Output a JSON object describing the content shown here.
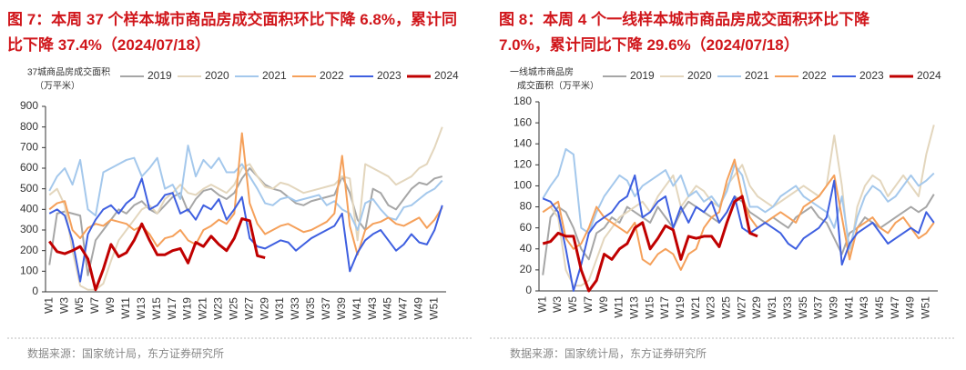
{
  "chart_data": [
    {
      "type": "line",
      "title": "图 7：本周 37 个样本城市商品房成交面积环比下降 6.8%，累计同比下降 37.4%（2024/07/18）",
      "y_label": [
        "37城商品房成交面积",
        "（万平米）"
      ],
      "source": "数据来源：国家统计局，东方证券研究所",
      "categories": [
        "W1",
        null,
        "W3",
        null,
        "W5",
        null,
        "W7",
        null,
        "W9",
        null,
        "W11",
        null,
        "W13",
        null,
        "W15",
        null,
        "W17",
        null,
        "W19",
        null,
        "W21",
        null,
        "W23",
        null,
        "W25",
        null,
        "W27",
        null,
        "W29",
        null,
        "W31",
        null,
        "W33",
        null,
        "W35",
        null,
        "W37",
        null,
        "W39",
        null,
        "W41",
        null,
        "W43",
        null,
        "W45",
        null,
        "W47",
        null,
        "W49",
        null,
        "W51",
        null
      ],
      "ylim": [
        0,
        900
      ],
      "yticks": [
        0,
        100,
        200,
        300,
        400,
        500,
        600,
        700,
        800,
        900
      ],
      "series": [
        {
          "name": "2019",
          "color": "#a6a6a6",
          "width": 2,
          "values": [
            130,
            380,
            390,
            380,
            370,
            80,
            250,
            300,
            350,
            400,
            380,
            420,
            440,
            400,
            380,
            420,
            460,
            480,
            390,
            450,
            490,
            500,
            470,
            450,
            480,
            550,
            600,
            560,
            520,
            500,
            490,
            460,
            430,
            420,
            440,
            450,
            460,
            470,
            560,
            480,
            350,
            300,
            500,
            480,
            420,
            400,
            450,
            500,
            530,
            520,
            550,
            560
          ]
        },
        {
          "name": "2020",
          "color": "#e3d6bd",
          "width": 2,
          "values": [
            470,
            500,
            420,
            200,
            30,
            10,
            10,
            40,
            150,
            250,
            300,
            350,
            400,
            420,
            380,
            450,
            480,
            520,
            480,
            470,
            500,
            520,
            500,
            480,
            520,
            600,
            620,
            560,
            510,
            500,
            530,
            520,
            500,
            480,
            490,
            500,
            510,
            520,
            560,
            550,
            250,
            620,
            600,
            580,
            560,
            520,
            540,
            560,
            600,
            620,
            700,
            800
          ]
        },
        {
          "name": "2021",
          "color": "#a4c8ec",
          "width": 2,
          "values": [
            490,
            560,
            600,
            520,
            640,
            400,
            370,
            580,
            600,
            620,
            640,
            650,
            560,
            600,
            650,
            500,
            520,
            450,
            710,
            560,
            640,
            600,
            650,
            580,
            580,
            620,
            560,
            500,
            430,
            420,
            450,
            460,
            440,
            450,
            460,
            470,
            420,
            440,
            400,
            380,
            300,
            430,
            450,
            400,
            360,
            350,
            410,
            420,
            450,
            480,
            500,
            540
          ]
        },
        {
          "name": "2022",
          "color": "#f5a05a",
          "width": 2,
          "values": [
            400,
            430,
            440,
            300,
            260,
            310,
            330,
            320,
            350,
            340,
            330,
            300,
            320,
            280,
            220,
            260,
            270,
            300,
            250,
            230,
            300,
            320,
            350,
            330,
            380,
            770,
            430,
            330,
            280,
            300,
            320,
            330,
            310,
            290,
            300,
            320,
            340,
            380,
            660,
            320,
            180,
            300,
            330,
            340,
            360,
            330,
            320,
            340,
            360,
            310,
            350,
            410
          ]
        },
        {
          "name": "2023",
          "color": "#3e5fe0",
          "width": 2,
          "values": [
            380,
            400,
            370,
            250,
            50,
            280,
            350,
            400,
            420,
            380,
            430,
            460,
            550,
            400,
            420,
            470,
            480,
            380,
            400,
            350,
            420,
            400,
            450,
            350,
            400,
            460,
            260,
            220,
            210,
            230,
            250,
            240,
            200,
            230,
            260,
            280,
            300,
            320,
            380,
            100,
            190,
            250,
            280,
            300,
            250,
            200,
            230,
            280,
            240,
            230,
            300,
            420
          ]
        },
        {
          "name": "2024",
          "color": "#c00000",
          "width": 3,
          "values": [
            245,
            195,
            185,
            200,
            220,
            160,
            10,
            110,
            230,
            170,
            190,
            250,
            330,
            250,
            180,
            180,
            200,
            210,
            140,
            240,
            220,
            270,
            230,
            200,
            260,
            355,
            345,
            175,
            165,
            null,
            null,
            null,
            null,
            null,
            null,
            null,
            null,
            null,
            null,
            null,
            null,
            null,
            null,
            null,
            null,
            null,
            null,
            null,
            null,
            null,
            null,
            null
          ]
        }
      ]
    },
    {
      "type": "line",
      "title": "图 8：本周 4 个一线样本城市商品房成交面积环比下降 7.0%，累计同比下降 29.6%（2024/07/18）",
      "y_label": [
        "一线城市商品房",
        "成交面积（万平米）"
      ],
      "source": "数据来源：国家统计局，东方证券研究所",
      "categories": [
        "W1",
        null,
        "W3",
        null,
        "W5",
        null,
        "W7",
        null,
        "W9",
        null,
        "W11",
        null,
        "W13",
        null,
        "W15",
        null,
        "W17",
        null,
        "W19",
        null,
        "W21",
        null,
        "W23",
        null,
        "W25",
        null,
        "W27",
        null,
        "W29",
        null,
        "W31",
        null,
        "W33",
        null,
        "W35",
        null,
        "W37",
        null,
        "W39",
        null,
        "W41",
        null,
        "W43",
        null,
        "W45",
        null,
        "W47",
        null,
        "W49",
        null,
        "W51",
        null
      ],
      "ylim": [
        0,
        180
      ],
      "yticks": [
        0,
        20,
        40,
        60,
        80,
        100,
        120,
        140,
        160,
        180
      ],
      "series": [
        {
          "name": "2019",
          "color": "#a6a6a6",
          "width": 2,
          "values": [
            15,
            70,
            80,
            75,
            60,
            40,
            30,
            55,
            60,
            70,
            65,
            80,
            75,
            70,
            65,
            80,
            70,
            60,
            75,
            85,
            80,
            75,
            70,
            65,
            75,
            90,
            85,
            75,
            70,
            65,
            70,
            65,
            60,
            70,
            75,
            80,
            70,
            65,
            50,
            35,
            55,
            60,
            70,
            65,
            60,
            65,
            70,
            75,
            80,
            75,
            80,
            92
          ]
        },
        {
          "name": "2020",
          "color": "#e3d6bd",
          "width": 2,
          "values": [
            75,
            80,
            70,
            20,
            5,
            5,
            10,
            30,
            50,
            60,
            70,
            75,
            80,
            85,
            75,
            90,
            100,
            110,
            80,
            90,
            100,
            95,
            85,
            80,
            100,
            110,
            120,
            100,
            90,
            85,
            80,
            85,
            90,
            95,
            100,
            95,
            90,
            100,
            148,
            100,
            30,
            80,
            100,
            110,
            105,
            90,
            100,
            110,
            100,
            90,
            130,
            158
          ]
        },
        {
          "name": "2021",
          "color": "#a4c8ec",
          "width": 2,
          "values": [
            88,
            100,
            110,
            135,
            130,
            60,
            55,
            75,
            90,
            100,
            110,
            105,
            90,
            100,
            105,
            110,
            115,
            100,
            110,
            90,
            95,
            85,
            90,
            80,
            95,
            120,
            110,
            80,
            80,
            75,
            80,
            90,
            95,
            100,
            90,
            85,
            80,
            75,
            60,
            90,
            40,
            70,
            90,
            100,
            95,
            85,
            90,
            100,
            110,
            100,
            105,
            112
          ]
        },
        {
          "name": "2022",
          "color": "#f5a05a",
          "width": 2,
          "values": [
            75,
            80,
            85,
            50,
            40,
            45,
            60,
            80,
            70,
            65,
            60,
            55,
            65,
            30,
            25,
            35,
            40,
            35,
            20,
            35,
            40,
            60,
            70,
            75,
            105,
            125,
            90,
            70,
            60,
            65,
            70,
            75,
            70,
            65,
            80,
            85,
            90,
            100,
            110,
            70,
            30,
            60,
            65,
            70,
            60,
            55,
            65,
            70,
            60,
            50,
            55,
            65
          ]
        },
        {
          "name": "2023",
          "color": "#3e5fe0",
          "width": 2,
          "values": [
            88,
            85,
            75,
            40,
            0,
            25,
            55,
            65,
            70,
            75,
            85,
            90,
            110,
            70,
            75,
            85,
            90,
            60,
            80,
            65,
            80,
            75,
            85,
            65,
            75,
            90,
            60,
            55,
            60,
            65,
            60,
            55,
            45,
            40,
            50,
            55,
            60,
            70,
            105,
            25,
            45,
            55,
            60,
            65,
            55,
            45,
            50,
            55,
            60,
            55,
            75,
            65
          ]
        },
        {
          "name": "2024",
          "color": "#c00000",
          "width": 3,
          "values": [
            45,
            47,
            55,
            52,
            52,
            20,
            0,
            10,
            35,
            30,
            40,
            45,
            60,
            65,
            40,
            50,
            62,
            58,
            30,
            52,
            50,
            52,
            52,
            42,
            65,
            85,
            90,
            55,
            52,
            null,
            null,
            null,
            null,
            null,
            null,
            null,
            null,
            null,
            null,
            null,
            null,
            null,
            null,
            null,
            null,
            null,
            null,
            null,
            null,
            null,
            null,
            null
          ]
        }
      ]
    }
  ]
}
